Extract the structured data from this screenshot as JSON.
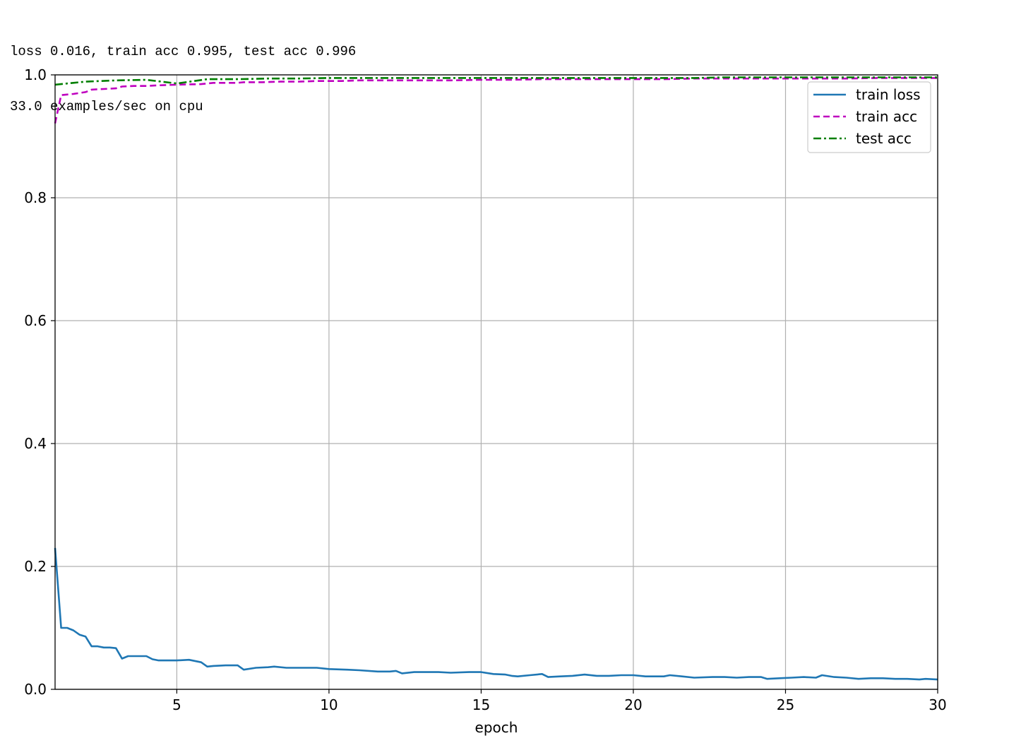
{
  "console": {
    "line1": "loss 0.016, train acc 0.995, test acc 0.996",
    "line2": "33.0 examples/sec on cpu"
  },
  "chart_data": {
    "type": "line",
    "title": "",
    "xlabel": "epoch",
    "ylabel": "",
    "xlim": [
      1,
      30
    ],
    "ylim": [
      0.0,
      1.0
    ],
    "xticks": [
      5,
      10,
      15,
      20,
      25,
      30
    ],
    "yticks": [
      0.0,
      0.2,
      0.4,
      0.6,
      0.8,
      1.0
    ],
    "xtick_labels": [
      "5",
      "10",
      "15",
      "20",
      "25",
      "30"
    ],
    "ytick_labels": [
      "0.0",
      "0.2",
      "0.4",
      "0.6",
      "0.8",
      "1.0"
    ],
    "grid": true,
    "legend_position": "top-right",
    "series": [
      {
        "name": "train loss",
        "color": "#1f77b4",
        "style": "solid",
        "x": [
          1.0,
          1.2,
          1.4,
          1.6,
          1.8,
          2.0,
          2.2,
          2.4,
          2.6,
          2.8,
          3.0,
          3.2,
          3.4,
          3.6,
          3.8,
          4.0,
          4.2,
          4.4,
          4.6,
          4.8,
          5.0,
          5.4,
          5.8,
          6.0,
          6.2,
          6.6,
          7.0,
          7.2,
          7.6,
          8.0,
          8.2,
          8.6,
          9.0,
          9.6,
          10.0,
          10.6,
          11.0,
          11.6,
          12.0,
          12.2,
          12.4,
          12.8,
          13.2,
          13.6,
          14.0,
          14.6,
          15.0,
          15.4,
          15.8,
          16.0,
          16.2,
          16.6,
          17.0,
          17.2,
          17.6,
          18.0,
          18.4,
          18.8,
          19.2,
          19.6,
          20.0,
          20.4,
          20.8,
          21.0,
          21.2,
          21.6,
          22.0,
          22.6,
          23.0,
          23.4,
          23.8,
          24.2,
          24.4,
          24.8,
          25.2,
          25.6,
          26.0,
          26.2,
          26.6,
          27.0,
          27.4,
          27.8,
          28.2,
          28.6,
          29.0,
          29.4,
          29.6,
          30.0
        ],
        "values": [
          0.23,
          0.1,
          0.1,
          0.096,
          0.089,
          0.086,
          0.07,
          0.07,
          0.068,
          0.068,
          0.067,
          0.05,
          0.054,
          0.054,
          0.054,
          0.054,
          0.049,
          0.047,
          0.047,
          0.047,
          0.047,
          0.048,
          0.044,
          0.037,
          0.038,
          0.039,
          0.039,
          0.032,
          0.035,
          0.036,
          0.037,
          0.035,
          0.035,
          0.035,
          0.033,
          0.032,
          0.031,
          0.029,
          0.029,
          0.03,
          0.026,
          0.028,
          0.028,
          0.028,
          0.027,
          0.028,
          0.028,
          0.025,
          0.024,
          0.022,
          0.021,
          0.023,
          0.025,
          0.02,
          0.021,
          0.022,
          0.024,
          0.022,
          0.022,
          0.023,
          0.023,
          0.021,
          0.021,
          0.021,
          0.023,
          0.021,
          0.019,
          0.02,
          0.02,
          0.019,
          0.02,
          0.02,
          0.017,
          0.018,
          0.019,
          0.02,
          0.019,
          0.023,
          0.02,
          0.019,
          0.017,
          0.018,
          0.018,
          0.017,
          0.017,
          0.016,
          0.017,
          0.016
        ]
      },
      {
        "name": "train acc",
        "color": "#bf00bf",
        "style": "dashed",
        "x": [
          1.0,
          1.2,
          1.6,
          2.0,
          2.2,
          2.6,
          3.0,
          3.2,
          3.6,
          4.0,
          4.4,
          5.0,
          5.8,
          6.2,
          7.0,
          7.2,
          7.8,
          8.4,
          9.0,
          9.6,
          10.4,
          11.0,
          12.0,
          13.0,
          14.0,
          15.0,
          16.0,
          17.0,
          18.0,
          19.0,
          20.0,
          21.0,
          22.0,
          23.0,
          24.0,
          25.0,
          26.0,
          27.0,
          28.0,
          29.0,
          30.0
        ],
        "values": [
          0.921,
          0.967,
          0.969,
          0.972,
          0.976,
          0.977,
          0.978,
          0.981,
          0.982,
          0.982,
          0.983,
          0.984,
          0.985,
          0.987,
          0.987,
          0.988,
          0.988,
          0.989,
          0.989,
          0.99,
          0.99,
          0.991,
          0.991,
          0.991,
          0.991,
          0.992,
          0.992,
          0.993,
          0.993,
          0.993,
          0.993,
          0.993,
          0.994,
          0.994,
          0.994,
          0.994,
          0.994,
          0.994,
          0.995,
          0.995,
          0.995
        ]
      },
      {
        "name": "test acc",
        "color": "#007f00",
        "style": "dashdot",
        "x": [
          1.0,
          1.6,
          2.0,
          3.0,
          4.0,
          5.0,
          6.0,
          7.0,
          8.0,
          9.0,
          10.0,
          11.0,
          12.0,
          13.0,
          14.0,
          15.0,
          16.0,
          17.0,
          18.0,
          19.0,
          20.0,
          21.0,
          22.0,
          23.0,
          24.0,
          25.0,
          26.0,
          27.0,
          28.0,
          29.0,
          30.0
        ],
        "values": [
          0.984,
          0.987,
          0.989,
          0.991,
          0.992,
          0.986,
          0.993,
          0.993,
          0.994,
          0.994,
          0.995,
          0.995,
          0.995,
          0.995,
          0.995,
          0.995,
          0.995,
          0.995,
          0.995,
          0.995,
          0.995,
          0.995,
          0.995,
          0.996,
          0.996,
          0.996,
          0.996,
          0.996,
          0.996,
          0.996,
          0.996
        ]
      }
    ]
  }
}
